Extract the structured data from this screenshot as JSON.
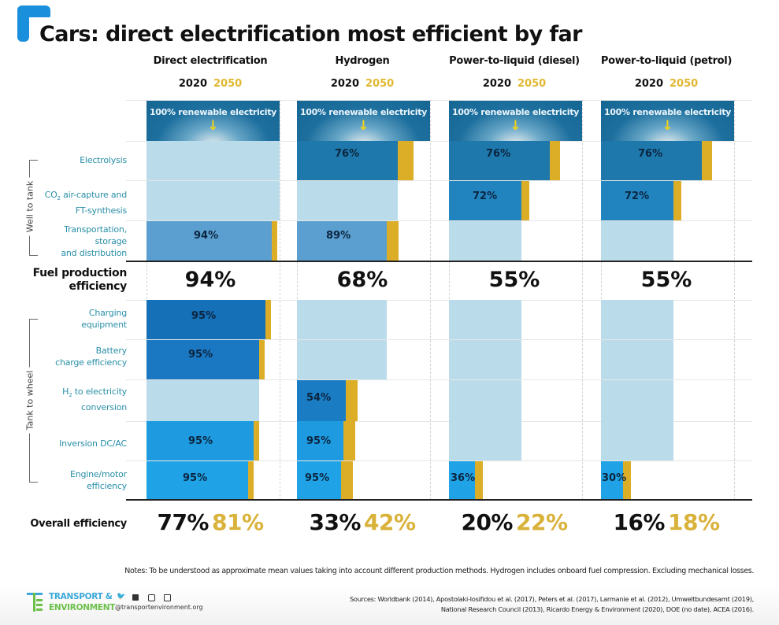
{
  "title": "Cars: direct electrification most efficient by far",
  "colors": {
    "accent": "#1a8fdc",
    "year_2050": "#e0b830",
    "gap_2050": "#dcae28",
    "unused": "#b9dbea",
    "label_teal": "#2a8fa8"
  },
  "groups": {
    "well_to_tank": "Well to tank",
    "tank_to_wheel": "Tank to wheel"
  },
  "row_labels": {
    "electrolysis": "Electrolysis",
    "co2_a": "CO",
    "co2_sub": "2",
    "co2_b": " air-capture and",
    "co2_c": "FT-synthesis",
    "transport_a": "Transportation,",
    "transport_b": "storage",
    "transport_c": "and distribution",
    "fuel_a": "Fuel production",
    "fuel_b": "efficiency",
    "charging_a": "Charging",
    "charging_b": "equipment",
    "battery_a": "Battery",
    "battery_b": "charge efficiency",
    "h2_a": "H",
    "h2_sub": "2",
    "h2_b": " to electricity",
    "h2_c": "conversion",
    "inversion": "Inversion DC/AC",
    "engine_a": "Engine/motor",
    "engine_b": "efficiency",
    "overall": "Overall efficiency"
  },
  "year_labels": {
    "y2020": "2020",
    "y2050": "2050"
  },
  "renewable_label": "100% renewable electricity",
  "renewable_arrow": "↓",
  "chart_data": {
    "type": "bar",
    "title": "Cars: direct electrification most efficient by far",
    "xlabel": "",
    "ylabel": "",
    "unit": "%",
    "legend": [
      "2020",
      "2050"
    ],
    "categories": [
      "Direct electrification",
      "Hydrogen",
      "Power-to-liquid (diesel)",
      "Power-to-liquid (petrol)"
    ],
    "steps": [
      "Electrolysis",
      "CO2 air-capture and FT-synthesis",
      "Transportation, storage and distribution",
      "Charging equipment",
      "Battery charge efficiency",
      "H2 to electricity conversion",
      "Inversion DC/AC",
      "Engine/motor efficiency"
    ],
    "series": [
      {
        "name": "Direct electrification",
        "step_efficiency": {
          "Transportation, storage and distribution": 94,
          "Charging equipment": 95,
          "Battery charge efficiency": 95,
          "Inversion DC/AC": 95,
          "Engine/motor efficiency": 95
        },
        "fuel_production_efficiency": 94,
        "overall_2020": 77,
        "overall_2050": 81
      },
      {
        "name": "Hydrogen",
        "step_efficiency": {
          "Electrolysis": 76,
          "Transportation, storage and distribution": 89,
          "H2 to electricity conversion": 54,
          "Inversion DC/AC": 95,
          "Engine/motor efficiency": 95
        },
        "fuel_production_efficiency": 68,
        "overall_2020": 33,
        "overall_2050": 42
      },
      {
        "name": "Power-to-liquid (diesel)",
        "step_efficiency": {
          "Electrolysis": 76,
          "CO2 air-capture and FT-synthesis": 72,
          "Engine/motor efficiency": 36
        },
        "fuel_production_efficiency": 55,
        "overall_2020": 20,
        "overall_2050": 22
      },
      {
        "name": "Power-to-liquid (petrol)",
        "step_efficiency": {
          "Electrolysis": 76,
          "CO2 air-capture and FT-synthesis": 72,
          "Engine/motor efficiency": 30
        },
        "fuel_production_efficiency": 55,
        "overall_2020": 16,
        "overall_2050": 18
      }
    ],
    "bar_labels": {
      "de": {
        "transport": "94%",
        "charging": "95%",
        "battery": "95%",
        "inversion": "95%",
        "engine": "95%"
      },
      "h2": {
        "electrolysis": "76%",
        "transport": "89%",
        "h2conv": "54%",
        "inversion": "95%",
        "engine": "95%"
      },
      "ptld": {
        "electrolysis": "76%",
        "co2": "72%",
        "engine": "36%"
      },
      "ptlp": {
        "electrolysis": "76%",
        "co2": "72%",
        "engine": "30%"
      }
    },
    "fuel_production_labels": [
      "94%",
      "68%",
      "55%",
      "55%"
    ],
    "overall_labels": [
      {
        "y2020": "77%",
        "y2050": "81%"
      },
      {
        "y2020": "33%",
        "y2050": "42%"
      },
      {
        "y2020": "20%",
        "y2050": "22%"
      },
      {
        "y2020": "16%",
        "y2050": "18%"
      }
    ]
  },
  "notes": "Notes: To be understood as approximate mean values taking into account different production methods. Hydrogen includes onboard fuel compression. Excluding mechanical losses.",
  "footer": {
    "org_line1": "TRANSPORT &",
    "org_line2": "ENVIRONMENT",
    "website": "@transportenvironment.org",
    "social": [
      "twitter-icon",
      "facebook-icon",
      "instagram-icon",
      "linkedin-icon"
    ],
    "sources_line1": "Sources: Worldbank (2014), Apostolaki-Iosifidou et al. (2017), Peters et al. (2017), Larmanie et al. (2012), Umweltbundesamt (2019),",
    "sources_line2": "National Research Council (2013), Ricardo Energy & Environment (2020), DOE (no date), ACEA (2016)."
  }
}
